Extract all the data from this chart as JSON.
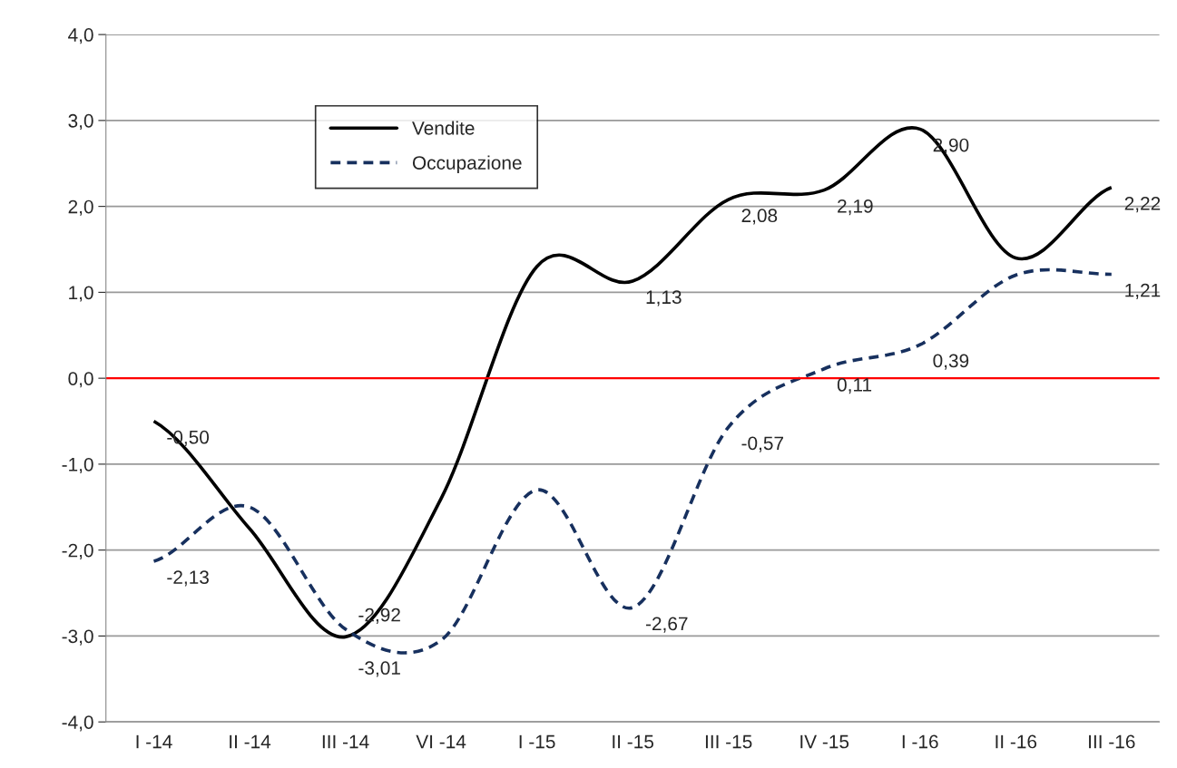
{
  "chart_data": {
    "type": "line",
    "categories": [
      "I -14",
      "II -14",
      "III -14",
      "VI -14",
      "I -15",
      "II -15",
      "III -15",
      "IV -15",
      "I -16",
      "II -16",
      "III -16"
    ],
    "series": [
      {
        "name": "Vendite",
        "color": "#000000",
        "line_style": "solid",
        "values": [
          -0.5,
          -1.75,
          -3.01,
          -1.4,
          1.3,
          1.13,
          2.08,
          2.19,
          2.9,
          1.4,
          2.22
        ],
        "value_labels": [
          "-0,50",
          null,
          "-3,01",
          null,
          null,
          "1,13",
          "2,08",
          "2,19",
          "2,90",
          null,
          "2,22"
        ]
      },
      {
        "name": "Occupazione",
        "color": "#17305e",
        "line_style": "dashed",
        "values": [
          -2.13,
          -1.5,
          -2.92,
          -3.05,
          -1.3,
          -2.67,
          -0.57,
          0.11,
          0.39,
          1.2,
          1.21
        ],
        "value_labels": [
          "-2,13",
          null,
          "-2,92",
          null,
          null,
          "-2,67",
          "-0,57",
          "0,11",
          "0,39",
          null,
          "1,21"
        ]
      }
    ],
    "ylim": [
      -4,
      4
    ],
    "yticks": [
      {
        "value": -4,
        "label": "-4,0"
      },
      {
        "value": -3,
        "label": "-3,0"
      },
      {
        "value": -2,
        "label": "-2,0"
      },
      {
        "value": -1,
        "label": "-1,0"
      },
      {
        "value": 0,
        "label": "0,0"
      },
      {
        "value": 1,
        "label": "1,0"
      },
      {
        "value": 2,
        "label": "2,0"
      },
      {
        "value": 3,
        "label": "3,0"
      },
      {
        "value": 4,
        "label": "4,0"
      }
    ],
    "grid": "y",
    "legend": "top left",
    "ref_lines": [
      {
        "axis": "y",
        "value": 0,
        "color": "#ff0000"
      }
    ]
  }
}
